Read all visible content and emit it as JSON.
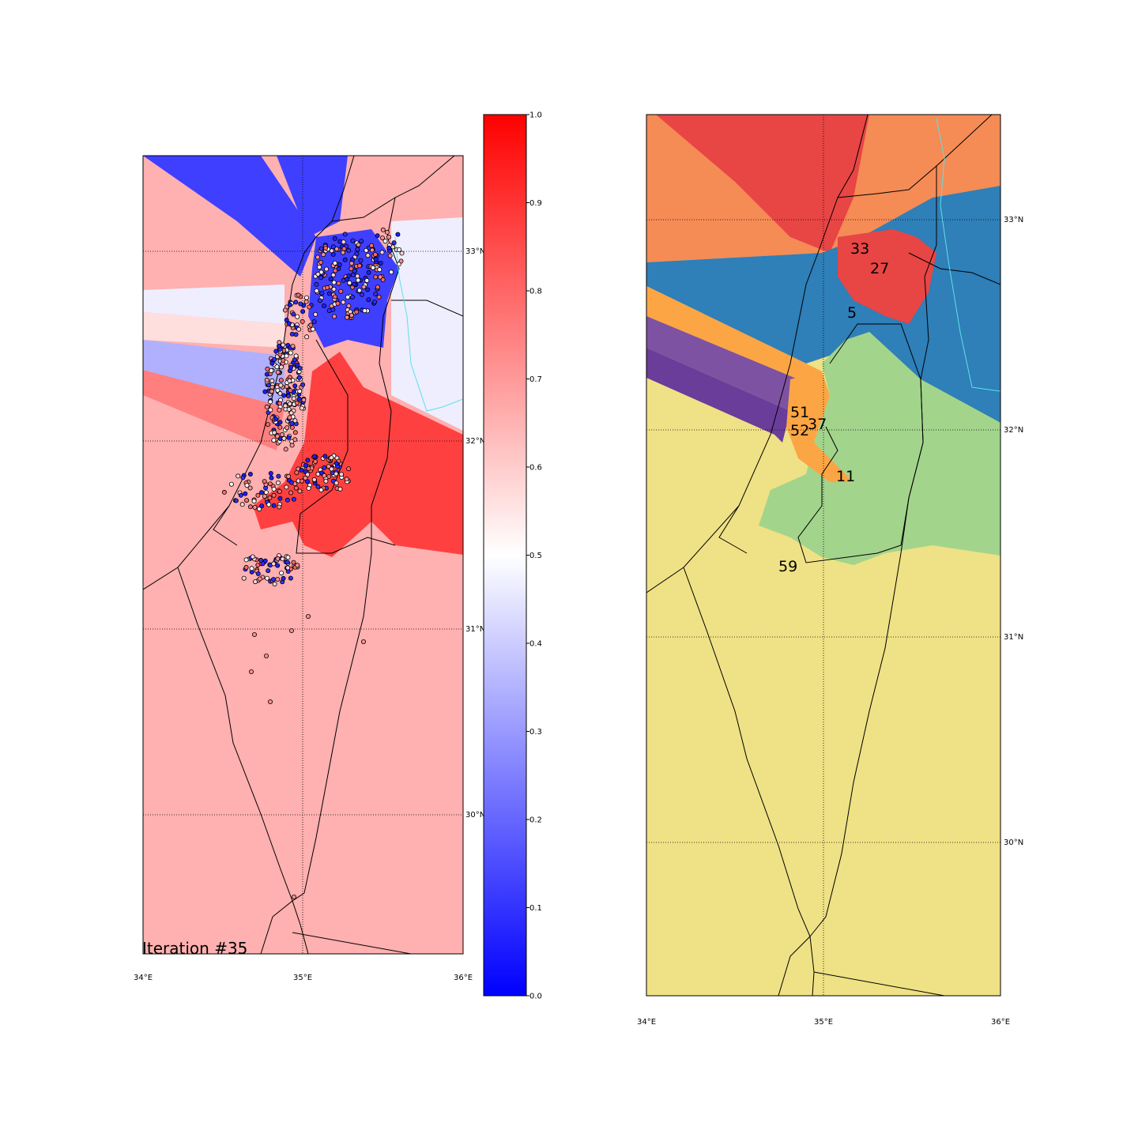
{
  "left_map": {
    "lon_range": [
      34,
      36
    ],
    "lat_range": [
      29.45,
      33.55
    ],
    "lon_labels": [
      "34°E",
      "35°E",
      "36°E"
    ],
    "lat_labels": [
      "33°N",
      "32°N",
      "31°N",
      "30°N"
    ],
    "iteration_label": "Iteration #35",
    "background_color": "#ffb0b0",
    "colors": {
      "blue": "#3f3fff",
      "red": "#ff4040",
      "pale": "#eeeeff",
      "light_pink": "#ffdede",
      "lavender": "#b0b0ff",
      "salmon": "#ff7f7f"
    }
  },
  "colorbar": {
    "min": 0.0,
    "max": 1.0,
    "tick_labels": [
      "0.0",
      "0.1",
      "0.2",
      "0.3",
      "0.4",
      "0.5",
      "0.6",
      "0.7",
      "0.8",
      "0.9",
      "1.0"
    ],
    "colormap": [
      "#0000ff",
      "#ffffff",
      "#ff0000"
    ]
  },
  "right_map": {
    "lon_labels": [
      "34°E",
      "35°E",
      "36°E"
    ],
    "lat_labels": [
      "33°N",
      "32°N",
      "31°N",
      "30°N"
    ],
    "region_labels": [
      "33",
      "27",
      "5",
      "51",
      "52",
      "37",
      "11",
      "59"
    ],
    "colors": {
      "red": "#e84545",
      "orange": "#f58b55",
      "blue": "#2f7fb8",
      "light_orange": "#fca544",
      "purple": "#7e52a2",
      "dark_purple": "#6a3d9a",
      "green": "#a2d48c",
      "yellow": "#efe185"
    }
  }
}
